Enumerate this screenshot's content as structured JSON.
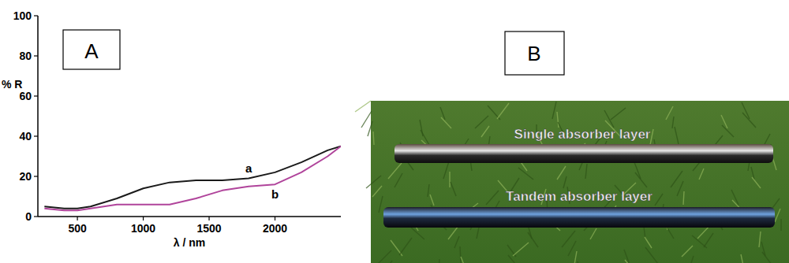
{
  "chart_data": {
    "type": "line",
    "x_label": "λ / nm",
    "y_label": "% R",
    "annotations": [
      "A"
    ],
    "xlim": [
      200,
      2500
    ],
    "xticks": [
      500,
      1000,
      1500,
      2000
    ],
    "ylim": [
      0,
      100
    ],
    "yticks": [
      0,
      20,
      40,
      60,
      80,
      100
    ],
    "grid": false,
    "x": [
      250,
      400,
      500,
      600,
      800,
      1000,
      1200,
      1400,
      1600,
      1800,
      2000,
      2200,
      2400,
      2500
    ],
    "series": [
      {
        "name": "a",
        "color": "#1a1a1a",
        "values": [
          5,
          4,
          4,
          5,
          9,
          14,
          17,
          18,
          18,
          19,
          22,
          27,
          33,
          35
        ]
      },
      {
        "name": "b",
        "color": "#b0449b",
        "values": [
          4,
          3,
          3,
          4,
          6,
          6,
          6,
          9,
          13,
          15,
          16,
          22,
          30,
          35
        ]
      }
    ]
  },
  "photo": {
    "panel_label": "B",
    "labels": [
      "Single absorber layer",
      "Tandem absorber layer"
    ]
  }
}
